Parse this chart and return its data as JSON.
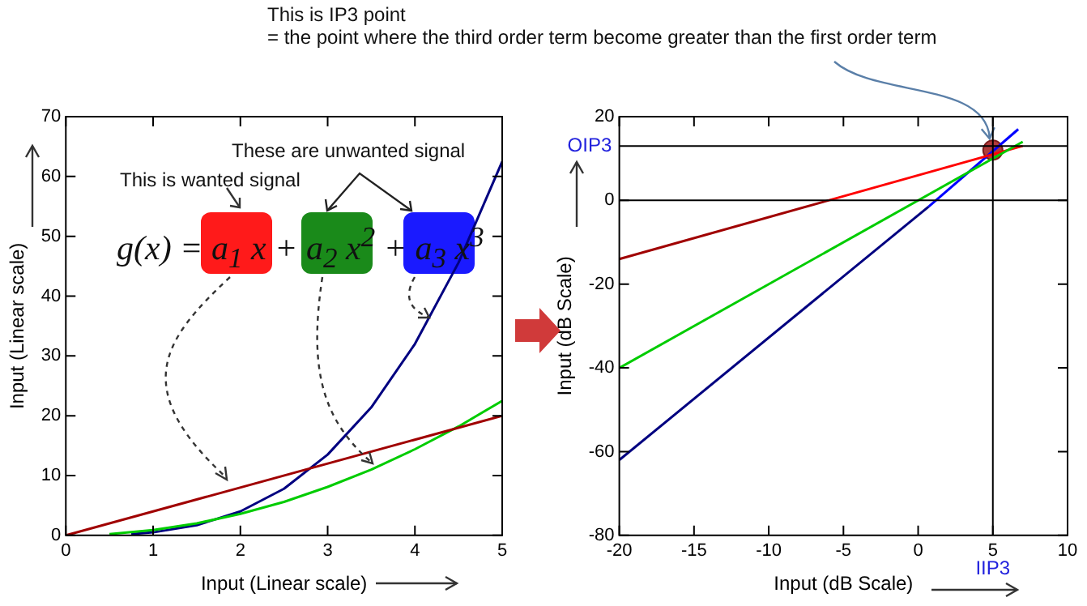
{
  "chart_data": [
    {
      "type": "line",
      "xlabel": "Input (Linear scale)",
      "ylabel": "Input (Linear scale)",
      "xlim": [
        0,
        5
      ],
      "xticks": [
        0,
        1,
        2,
        3,
        4,
        5
      ],
      "ylim": [
        0,
        70
      ],
      "yticks": [
        0,
        10,
        20,
        30,
        40,
        50,
        60,
        70
      ],
      "grid": false,
      "legend": false,
      "annotations": [
        "This is wanted signal",
        "These are unwanted signal",
        "g(x) = a$_{1}$ x + a$_{2}$ x$^{2}$ + a$_{3}$ x$^{3}$"
      ],
      "series": [
        {
          "color": "#a00000",
          "x": [
            0,
            5
          ],
          "values": [
            0,
            20
          ]
        },
        {
          "color": "#00cc00",
          "x": [
            0.5,
            1,
            1.5,
            2,
            2.5,
            3,
            3.5,
            4,
            4.5,
            5
          ],
          "values": [
            0.2,
            0.9,
            2,
            3.6,
            5.6,
            8.1,
            11,
            14.4,
            18.2,
            22.5
          ]
        },
        {
          "color": "#000080",
          "x": [
            0.75,
            1,
            1.5,
            2,
            2.5,
            3,
            3.5,
            4,
            4.5,
            5
          ],
          "values": [
            0.2,
            0.5,
            1.7,
            4,
            7.8,
            13.5,
            21.4,
            32,
            45.6,
            62.5
          ]
        }
      ]
    },
    {
      "type": "line",
      "annotations": [
        "This is IP3 point",
        {
          "text": "= the point where the third order term become greater than the first order term",
          "x": 5,
          "y": 12
        }
      ],
      "xlabel": "Input (dB Scale)",
      "ylabel": "Input (dB Scale)",
      "xlim": [
        -20,
        10
      ],
      "xticks": [
        -20,
        -15,
        -10,
        -5,
        0,
        5,
        10
      ],
      "ylim": [
        -80,
        20
      ],
      "yticks": [
        -80,
        -60,
        -40,
        -20,
        0,
        20
      ],
      "grid": false,
      "legend": false,
      "ref_lines": [
        {
          "axis": "y",
          "value": 0,
          "color": "#000000"
        },
        {
          "axis": "y",
          "value": 13,
          "label": "OIP3",
          "color": "#000000"
        },
        {
          "axis": "x",
          "value": 5,
          "label": "IIP3",
          "color": "#000000"
        }
      ],
      "series": [
        {
          "color": "#a00000",
          "x": [
            -20,
            -6
          ],
          "values": [
            -14,
            0
          ]
        },
        {
          "color": "#00cc00",
          "x": [
            -20,
            7
          ],
          "values": [
            -40,
            14
          ]
        },
        {
          "color": "#000080",
          "x": [
            -20,
            0.7
          ],
          "values": [
            -62,
            -1.5
          ]
        },
        {
          "color": "#ff0000",
          "x": [
            -6,
            7
          ],
          "values": [
            0,
            13
          ]
        },
        {
          "color": "#0000ff",
          "x": [
            0.7,
            6.7
          ],
          "values": [
            -1.5,
            17
          ]
        },
        {
          "type": "scatter",
          "color": "#b03a3a",
          "x": [
            5
          ],
          "values": [
            12
          ],
          "marker": "circle"
        }
      ]
    }
  ]
}
